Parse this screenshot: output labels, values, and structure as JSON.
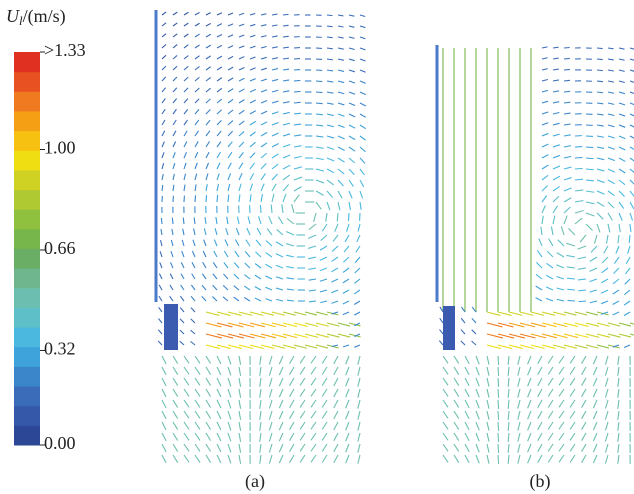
{
  "chart_data": {
    "type": "quiver",
    "colorbar": {
      "label_symbol": "U",
      "label_subscript": "l",
      "label_unit": "/(m/s)",
      "clim": [
        0,
        1.33
      ],
      "ticks": [
        {
          "value": 0,
          "label": "0.00"
        },
        0.32,
        0.66,
        {
          "value": 1,
          "label": "1.00"
        },
        {
          "value": 1.33,
          "label": ">1.33"
        }
      ],
      "colors": [
        "#2d4797",
        "#3558a8",
        "#3a6cb9",
        "#3b86cb",
        "#3ea3da",
        "#4bb8e0",
        "#5ebfc8",
        "#6cbfb0",
        "#6fb68e",
        "#6aae66",
        "#76b64a",
        "#8fc03e",
        "#aec932",
        "#cfd223",
        "#efdf12",
        "#f7c112",
        "#f5a014",
        "#ef7a1f",
        "#e85222",
        "#df3022"
      ]
    },
    "panels": [
      "(a)",
      "(b)"
    ]
  }
}
